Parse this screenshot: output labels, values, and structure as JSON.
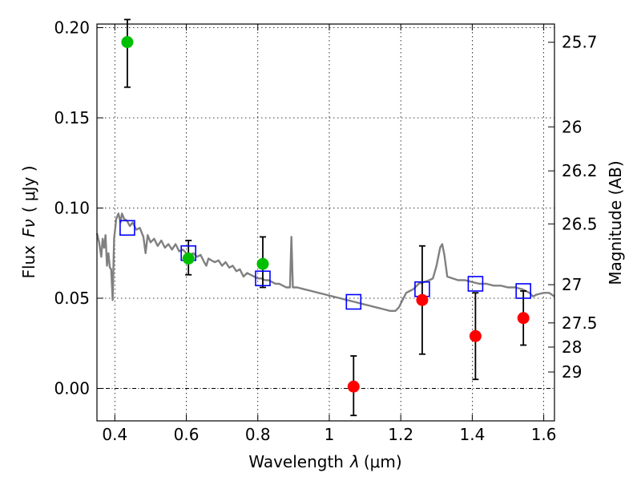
{
  "chart_data": {
    "type": "scatter",
    "xlabel": "Wavelength",
    "xlabel_symbol": "λ",
    "xlabel_unit": "(μm)",
    "ylabel": "Flux",
    "ylabel_symbol": "Fν",
    "ylabel_unit": "( μJy )",
    "y2label": "Magnitude (AB)",
    "xlim": [
      0.35,
      1.63
    ],
    "ylim": [
      -0.018,
      0.202
    ],
    "x_ticks": [
      0.4,
      0.6,
      0.8,
      1.0,
      1.2,
      1.4,
      1.6
    ],
    "x_tick_labels": [
      "0.4",
      "0.6",
      "0.8",
      "1",
      "1.2",
      "1.4",
      "1.6"
    ],
    "y_ticks": [
      0.0,
      0.05,
      0.1,
      0.15,
      0.2
    ],
    "y_tick_labels": [
      "0.00",
      "0.05",
      "0.10",
      "0.15",
      "0.20"
    ],
    "y2_tick_labels": [
      "25.7",
      "26",
      "26.2",
      "26.5",
      "27",
      "27.5",
      "28",
      "29"
    ],
    "y2_tick_flux": [
      0.1919,
      0.145,
      0.1206,
      0.0912,
      0.0575,
      0.0363,
      0.0229,
      0.0091
    ],
    "grid": true,
    "colors": {
      "detections": "#00bf00",
      "upper_limits": "#ff0000",
      "model_points": "#0000ff",
      "model_spectrum": "#808080",
      "error_bars": "#000000"
    },
    "series": [
      {
        "values": [
          {
            "x": 0.435,
            "y": 0.192,
            "err_low": 0.025,
            "err_high": 0.0125
          },
          {
            "x": 0.606,
            "y": 0.072,
            "err_low": 0.009,
            "err_high": 0.01
          },
          {
            "x": 0.814,
            "y": 0.069,
            "err_low": 0.013,
            "err_high": 0.015
          }
        ]
      },
      {
        "values": [
          {
            "x": 1.068,
            "y": 0.001,
            "err_low": 0.016,
            "err_high": 0.017
          },
          {
            "x": 1.26,
            "y": 0.049,
            "err_low": 0.03,
            "err_high": 0.03
          },
          {
            "x": 1.409,
            "y": 0.029,
            "err_low": 0.024,
            "err_high": 0.024
          },
          {
            "x": 1.543,
            "y": 0.039,
            "err_low": 0.015,
            "err_high": 0.015
          }
        ]
      },
      {
        "values": [
          {
            "x": 0.435,
            "y": 0.089
          },
          {
            "x": 0.606,
            "y": 0.075
          },
          {
            "x": 0.814,
            "y": 0.061
          },
          {
            "x": 1.068,
            "y": 0.048
          },
          {
            "x": 1.26,
            "y": 0.055
          },
          {
            "x": 1.409,
            "y": 0.058
          },
          {
            "x": 1.543,
            "y": 0.054
          }
        ]
      },
      {
        "values": [
          [
            0.35,
            0.086
          ],
          [
            0.356,
            0.081
          ],
          [
            0.362,
            0.073
          ],
          [
            0.366,
            0.083
          ],
          [
            0.37,
            0.078
          ],
          [
            0.374,
            0.085
          ],
          [
            0.378,
            0.068
          ],
          [
            0.382,
            0.075
          ],
          [
            0.386,
            0.067
          ],
          [
            0.39,
            0.066
          ],
          [
            0.394,
            0.049
          ],
          [
            0.398,
            0.083
          ],
          [
            0.404,
            0.094
          ],
          [
            0.41,
            0.097
          ],
          [
            0.416,
            0.092
          ],
          [
            0.42,
            0.097
          ],
          [
            0.426,
            0.094
          ],
          [
            0.434,
            0.093
          ],
          [
            0.442,
            0.09
          ],
          [
            0.45,
            0.092
          ],
          [
            0.46,
            0.088
          ],
          [
            0.47,
            0.089
          ],
          [
            0.48,
            0.084
          ],
          [
            0.486,
            0.075
          ],
          [
            0.492,
            0.085
          ],
          [
            0.5,
            0.081
          ],
          [
            0.51,
            0.083
          ],
          [
            0.52,
            0.079
          ],
          [
            0.53,
            0.082
          ],
          [
            0.54,
            0.078
          ],
          [
            0.55,
            0.08
          ],
          [
            0.56,
            0.077
          ],
          [
            0.57,
            0.08
          ],
          [
            0.58,
            0.076
          ],
          [
            0.59,
            0.077
          ],
          [
            0.6,
            0.075
          ],
          [
            0.61,
            0.074
          ],
          [
            0.62,
            0.075
          ],
          [
            0.63,
            0.073
          ],
          [
            0.64,
            0.074
          ],
          [
            0.65,
            0.07
          ],
          [
            0.656,
            0.068
          ],
          [
            0.662,
            0.072
          ],
          [
            0.67,
            0.071
          ],
          [
            0.68,
            0.07
          ],
          [
            0.69,
            0.071
          ],
          [
            0.7,
            0.068
          ],
          [
            0.71,
            0.07
          ],
          [
            0.72,
            0.067
          ],
          [
            0.73,
            0.068
          ],
          [
            0.74,
            0.065
          ],
          [
            0.75,
            0.066
          ],
          [
            0.76,
            0.062
          ],
          [
            0.77,
            0.064
          ],
          [
            0.78,
            0.063
          ],
          [
            0.79,
            0.062
          ],
          [
            0.8,
            0.061
          ],
          [
            0.81,
            0.061
          ],
          [
            0.82,
            0.06
          ],
          [
            0.83,
            0.06
          ],
          [
            0.84,
            0.059
          ],
          [
            0.85,
            0.058
          ],
          [
            0.86,
            0.058
          ],
          [
            0.87,
            0.057
          ],
          [
            0.88,
            0.056
          ],
          [
            0.89,
            0.056
          ],
          [
            0.894,
            0.084
          ],
          [
            0.898,
            0.056
          ],
          [
            0.91,
            0.056
          ],
          [
            0.93,
            0.055
          ],
          [
            0.95,
            0.054
          ],
          [
            0.97,
            0.053
          ],
          [
            0.99,
            0.052
          ],
          [
            1.01,
            0.051
          ],
          [
            1.03,
            0.05
          ],
          [
            1.05,
            0.049
          ],
          [
            1.07,
            0.048
          ],
          [
            1.09,
            0.047
          ],
          [
            1.11,
            0.046
          ],
          [
            1.13,
            0.045
          ],
          [
            1.15,
            0.044
          ],
          [
            1.17,
            0.043
          ],
          [
            1.185,
            0.043
          ],
          [
            1.195,
            0.045
          ],
          [
            1.205,
            0.049
          ],
          [
            1.215,
            0.053
          ],
          [
            1.225,
            0.054
          ],
          [
            1.235,
            0.055
          ],
          [
            1.25,
            0.058
          ],
          [
            1.265,
            0.059
          ],
          [
            1.28,
            0.06
          ],
          [
            1.29,
            0.061
          ],
          [
            1.3,
            0.068
          ],
          [
            1.31,
            0.078
          ],
          [
            1.316,
            0.08
          ],
          [
            1.322,
            0.074
          ],
          [
            1.33,
            0.062
          ],
          [
            1.345,
            0.061
          ],
          [
            1.36,
            0.06
          ],
          [
            1.38,
            0.06
          ],
          [
            1.4,
            0.059
          ],
          [
            1.42,
            0.058
          ],
          [
            1.44,
            0.058
          ],
          [
            1.46,
            0.057
          ],
          [
            1.48,
            0.057
          ],
          [
            1.5,
            0.056
          ],
          [
            1.52,
            0.056
          ],
          [
            1.54,
            0.055
          ],
          [
            1.56,
            0.053
          ],
          [
            1.57,
            0.051
          ],
          [
            1.58,
            0.052
          ],
          [
            1.6,
            0.053
          ],
          [
            1.615,
            0.053
          ],
          [
            1.63,
            0.051
          ]
        ]
      }
    ]
  }
}
